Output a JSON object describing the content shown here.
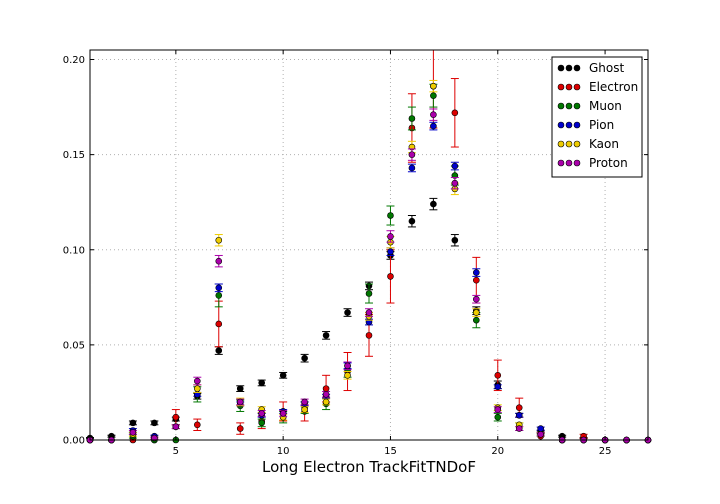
{
  "chart_data": {
    "type": "scatter",
    "title": "",
    "xlabel": "Long Electron TrackFitTNDoF",
    "ylabel": "",
    "xlim": [
      1,
      27
    ],
    "ylim": [
      0,
      0.205
    ],
    "xticks": [
      5,
      10,
      15,
      20,
      25
    ],
    "xtick_labels": [
      "5",
      "10",
      "15",
      "20",
      "25"
    ],
    "yticks": [
      0,
      0.05,
      0.1,
      0.15,
      0.2
    ],
    "ytick_labels": [
      "0.00",
      "0.05",
      "0.10",
      "0.15",
      "0.20"
    ],
    "grid": true,
    "legend_position": "top-right",
    "x": [
      1,
      2,
      3,
      4,
      5,
      6,
      7,
      8,
      9,
      10,
      11,
      12,
      13,
      14,
      15,
      16,
      17,
      18,
      19,
      20,
      21,
      22,
      23,
      24,
      25,
      26,
      27
    ],
    "series": [
      {
        "name": "Ghost",
        "color": "#000000",
        "values": [
          0.001,
          0.002,
          0.009,
          0.009,
          0.011,
          0.023,
          0.047,
          0.027,
          0.03,
          0.034,
          0.043,
          0.055,
          0.067,
          0.081,
          0.097,
          0.115,
          0.124,
          0.105,
          0.068,
          0.029,
          0.013,
          0.004,
          0.002,
          0.001,
          0,
          0,
          0
        ],
        "errors": [
          0.0003,
          0.0005,
          0.001,
          0.001,
          0.001,
          0.0015,
          0.002,
          0.0015,
          0.0015,
          0.0015,
          0.002,
          0.002,
          0.002,
          0.002,
          0.002,
          0.003,
          0.003,
          0.003,
          0.002,
          0.002,
          0.001,
          0.0008,
          0.0005,
          0.0003,
          0,
          0,
          0
        ]
      },
      {
        "name": "Electron",
        "color": "#dd0000",
        "values": [
          0,
          0,
          0,
          0,
          0.012,
          0.008,
          0.061,
          0.006,
          0.01,
          0.015,
          0.015,
          0.027,
          0.036,
          0.055,
          0.086,
          0.164,
          0.186,
          0.172,
          0.084,
          0.034,
          0.017,
          0.002,
          0,
          0.002,
          0,
          0,
          0
        ],
        "errors": [
          0,
          0,
          0,
          0,
          0.004,
          0.003,
          0.012,
          0.003,
          0.004,
          0.005,
          0.005,
          0.007,
          0.01,
          0.011,
          0.014,
          0.018,
          0.022,
          0.018,
          0.012,
          0.008,
          0.005,
          0.002,
          0,
          0.001,
          0,
          0,
          0
        ]
      },
      {
        "name": "Muon",
        "color": "#007700",
        "values": [
          0,
          0,
          0.002,
          0,
          0,
          0.024,
          0.076,
          0.018,
          0.009,
          0.012,
          0.017,
          0.019,
          0.037,
          0.077,
          0.118,
          0.169,
          0.181,
          0.139,
          0.063,
          0.012,
          0.007,
          0.003,
          0,
          0,
          0,
          0,
          0
        ],
        "errors": [
          0,
          0,
          0.001,
          0,
          0,
          0.004,
          0.006,
          0.003,
          0.002,
          0.003,
          0.003,
          0.003,
          0.004,
          0.005,
          0.005,
          0.006,
          0.006,
          0.005,
          0.004,
          0.002,
          0.002,
          0.001,
          0,
          0,
          0,
          0,
          0
        ]
      },
      {
        "name": "Pion",
        "color": "#0000cc",
        "values": [
          0,
          0,
          0.005,
          0.002,
          0.007,
          0.024,
          0.08,
          0.019,
          0.013,
          0.015,
          0.019,
          0.023,
          0.039,
          0.062,
          0.099,
          0.143,
          0.165,
          0.144,
          0.088,
          0.028,
          0.013,
          0.006,
          0,
          0,
          0,
          0,
          0
        ],
        "errors": [
          0,
          0,
          0.001,
          0.0005,
          0.001,
          0.001,
          0.002,
          0.001,
          0.001,
          0.001,
          0.001,
          0.001,
          0.0015,
          0.0015,
          0.002,
          0.002,
          0.002,
          0.002,
          0.002,
          0.001,
          0.001,
          0.0008,
          0,
          0,
          0,
          0,
          0
        ]
      },
      {
        "name": "Kaon",
        "color": "#eecc00",
        "values": [
          0,
          0,
          0.003,
          0.001,
          0.007,
          0.027,
          0.105,
          0.02,
          0.016,
          0.012,
          0.016,
          0.02,
          0.034,
          0.065,
          0.104,
          0.154,
          0.186,
          0.132,
          0.067,
          0.017,
          0.008,
          0.003,
          0,
          0,
          0,
          0,
          0
        ],
        "errors": [
          0,
          0,
          0.001,
          0.0005,
          0.001,
          0.002,
          0.003,
          0.002,
          0.0015,
          0.0015,
          0.0015,
          0.0015,
          0.002,
          0.002,
          0.003,
          0.003,
          0.003,
          0.003,
          0.002,
          0.0015,
          0.001,
          0.0008,
          0,
          0,
          0,
          0,
          0
        ]
      },
      {
        "name": "Proton",
        "color": "#aa00aa",
        "values": [
          0,
          0,
          0.004,
          0.001,
          0.007,
          0.031,
          0.094,
          0.02,
          0.014,
          0.014,
          0.02,
          0.024,
          0.039,
          0.067,
          0.107,
          0.15,
          0.171,
          0.135,
          0.074,
          0.016,
          0.006,
          0.003,
          0,
          0,
          0,
          0,
          0
        ],
        "errors": [
          0,
          0,
          0.001,
          0.0005,
          0.001,
          0.002,
          0.003,
          0.0015,
          0.0015,
          0.0015,
          0.0015,
          0.0015,
          0.002,
          0.002,
          0.003,
          0.003,
          0.003,
          0.003,
          0.002,
          0.0015,
          0.001,
          0.0008,
          0,
          0,
          0,
          0,
          0
        ]
      }
    ]
  }
}
